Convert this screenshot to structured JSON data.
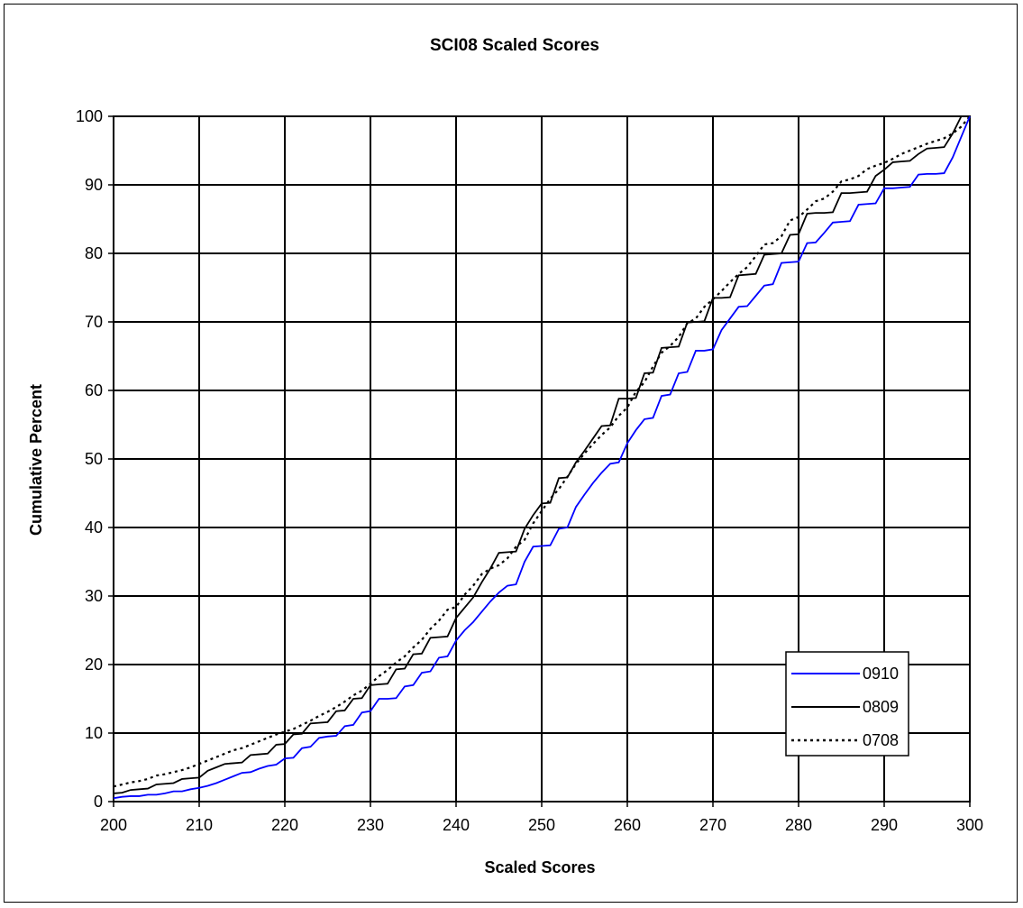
{
  "chart_data": {
    "type": "line",
    "title": "SCI08 Scaled Scores",
    "xlabel": "Scaled Scores",
    "ylabel": "Cumulative Percent",
    "xlim": [
      200,
      300
    ],
    "ylim": [
      0,
      100
    ],
    "xticks": [
      200,
      210,
      220,
      230,
      240,
      250,
      260,
      270,
      280,
      290,
      300
    ],
    "yticks": [
      0,
      10,
      20,
      30,
      40,
      50,
      60,
      70,
      80,
      90,
      100
    ],
    "grid": true,
    "legend_position": "bottom-right",
    "series": [
      {
        "name": "0910",
        "color": "#0000ff",
        "dash": "solid",
        "points": [
          [
            200,
            0.5
          ],
          [
            201,
            0.7
          ],
          [
            202,
            0.8
          ],
          [
            203,
            0.8
          ],
          [
            204,
            1.0
          ],
          [
            205,
            1.0
          ],
          [
            206,
            1.2
          ],
          [
            207,
            1.5
          ],
          [
            208,
            1.5
          ],
          [
            209,
            1.8
          ],
          [
            210,
            2.0
          ],
          [
            211,
            2.3
          ],
          [
            212,
            2.7
          ],
          [
            213,
            3.2
          ],
          [
            214,
            3.7
          ],
          [
            215,
            4.2
          ],
          [
            216,
            4.3
          ],
          [
            217,
            4.8
          ],
          [
            218,
            5.2
          ],
          [
            219,
            5.4
          ],
          [
            220,
            6.3
          ],
          [
            221,
            6.4
          ],
          [
            222,
            7.8
          ],
          [
            223,
            8.0
          ],
          [
            224,
            9.3
          ],
          [
            225,
            9.5
          ],
          [
            226,
            9.6
          ],
          [
            227,
            11.0
          ],
          [
            228,
            11.2
          ],
          [
            229,
            13.0
          ],
          [
            230,
            13.2
          ],
          [
            231,
            15.0
          ],
          [
            232,
            15.0
          ],
          [
            233,
            15.1
          ],
          [
            234,
            16.8
          ],
          [
            235,
            17.0
          ],
          [
            236,
            18.8
          ],
          [
            237,
            19.0
          ],
          [
            238,
            21.0
          ],
          [
            239,
            21.2
          ],
          [
            240,
            23.5
          ],
          [
            241,
            25.0
          ],
          [
            242,
            26.2
          ],
          [
            243,
            27.7
          ],
          [
            244,
            29.2
          ],
          [
            245,
            30.5
          ],
          [
            246,
            31.5
          ],
          [
            247,
            31.7
          ],
          [
            248,
            35.0
          ],
          [
            249,
            37.2
          ],
          [
            250,
            37.3
          ],
          [
            251,
            37.4
          ],
          [
            252,
            39.8
          ],
          [
            253,
            40.0
          ],
          [
            254,
            43.0
          ],
          [
            255,
            44.8
          ],
          [
            256,
            46.5
          ],
          [
            257,
            48.0
          ],
          [
            258,
            49.3
          ],
          [
            259,
            49.5
          ],
          [
            260,
            52.3
          ],
          [
            261,
            54.2
          ],
          [
            262,
            55.8
          ],
          [
            263,
            56.0
          ],
          [
            264,
            59.2
          ],
          [
            265,
            59.4
          ],
          [
            266,
            62.5
          ],
          [
            267,
            62.7
          ],
          [
            268,
            65.8
          ],
          [
            269,
            65.8
          ],
          [
            270,
            66.0
          ],
          [
            271,
            68.8
          ],
          [
            272,
            70.5
          ],
          [
            273,
            72.2
          ],
          [
            274,
            72.3
          ],
          [
            275,
            73.8
          ],
          [
            276,
            75.3
          ],
          [
            277,
            75.5
          ],
          [
            278,
            78.6
          ],
          [
            279,
            78.7
          ],
          [
            280,
            78.8
          ],
          [
            281,
            81.5
          ],
          [
            282,
            81.6
          ],
          [
            283,
            83.0
          ],
          [
            284,
            84.5
          ],
          [
            285,
            84.6
          ],
          [
            286,
            84.7
          ],
          [
            287,
            87.1
          ],
          [
            288,
            87.2
          ],
          [
            289,
            87.3
          ],
          [
            290,
            89.5
          ],
          [
            291,
            89.5
          ],
          [
            292,
            89.6
          ],
          [
            293,
            89.7
          ],
          [
            294,
            91.5
          ],
          [
            295,
            91.6
          ],
          [
            296,
            91.6
          ],
          [
            297,
            91.7
          ],
          [
            298,
            94.0
          ],
          [
            299,
            97.0
          ],
          [
            300,
            100.0
          ]
        ]
      },
      {
        "name": "0809",
        "color": "#000000",
        "dash": "solid",
        "points": [
          [
            200,
            1.2
          ],
          [
            201,
            1.3
          ],
          [
            202,
            1.7
          ],
          [
            203,
            1.8
          ],
          [
            204,
            1.9
          ],
          [
            205,
            2.5
          ],
          [
            206,
            2.6
          ],
          [
            207,
            2.7
          ],
          [
            208,
            3.3
          ],
          [
            209,
            3.4
          ],
          [
            210,
            3.5
          ],
          [
            211,
            4.5
          ],
          [
            212,
            5.0
          ],
          [
            213,
            5.5
          ],
          [
            214,
            5.6
          ],
          [
            215,
            5.7
          ],
          [
            216,
            6.8
          ],
          [
            217,
            6.9
          ],
          [
            218,
            7.0
          ],
          [
            219,
            8.3
          ],
          [
            220,
            8.4
          ],
          [
            221,
            9.8
          ],
          [
            222,
            9.9
          ],
          [
            223,
            11.4
          ],
          [
            224,
            11.5
          ],
          [
            225,
            11.6
          ],
          [
            226,
            13.2
          ],
          [
            227,
            13.3
          ],
          [
            228,
            15.0
          ],
          [
            229,
            15.1
          ],
          [
            230,
            17.0
          ],
          [
            231,
            17.1
          ],
          [
            232,
            17.2
          ],
          [
            233,
            19.3
          ],
          [
            234,
            19.4
          ],
          [
            235,
            21.5
          ],
          [
            236,
            21.6
          ],
          [
            237,
            23.9
          ],
          [
            238,
            24.0
          ],
          [
            239,
            24.1
          ],
          [
            240,
            26.8
          ],
          [
            241,
            28.3
          ],
          [
            242,
            29.8
          ],
          [
            243,
            32.0
          ],
          [
            244,
            34.0
          ],
          [
            245,
            36.3
          ],
          [
            246,
            36.4
          ],
          [
            247,
            36.5
          ],
          [
            248,
            39.8
          ],
          [
            249,
            41.8
          ],
          [
            250,
            43.5
          ],
          [
            251,
            43.6
          ],
          [
            252,
            47.2
          ],
          [
            253,
            47.3
          ],
          [
            254,
            49.5
          ],
          [
            255,
            51.2
          ],
          [
            256,
            53.0
          ],
          [
            257,
            54.8
          ],
          [
            258,
            54.9
          ],
          [
            259,
            58.8
          ],
          [
            260,
            58.8
          ],
          [
            261,
            58.9
          ],
          [
            262,
            62.5
          ],
          [
            263,
            62.6
          ],
          [
            264,
            66.2
          ],
          [
            265,
            66.3
          ],
          [
            266,
            66.4
          ],
          [
            267,
            69.9
          ],
          [
            268,
            70.0
          ],
          [
            269,
            70.1
          ],
          [
            270,
            73.5
          ],
          [
            271,
            73.5
          ],
          [
            272,
            73.6
          ],
          [
            273,
            76.8
          ],
          [
            274,
            76.9
          ],
          [
            275,
            77.0
          ],
          [
            276,
            79.8
          ],
          [
            277,
            79.9
          ],
          [
            278,
            80.0
          ],
          [
            279,
            82.7
          ],
          [
            280,
            82.8
          ],
          [
            281,
            85.8
          ],
          [
            282,
            85.9
          ],
          [
            283,
            85.9
          ],
          [
            284,
            86.0
          ],
          [
            285,
            88.8
          ],
          [
            286,
            88.8
          ],
          [
            287,
            88.9
          ],
          [
            288,
            89.0
          ],
          [
            289,
            91.3
          ],
          [
            290,
            92.2
          ],
          [
            291,
            93.3
          ],
          [
            292,
            93.4
          ],
          [
            293,
            93.5
          ],
          [
            294,
            94.5
          ],
          [
            295,
            95.3
          ],
          [
            296,
            95.4
          ],
          [
            297,
            95.5
          ],
          [
            298,
            97.5
          ],
          [
            299,
            100.0
          ],
          [
            300,
            100.0
          ]
        ]
      },
      {
        "name": "0708",
        "color": "#000000",
        "dash": "dotted",
        "points": [
          [
            200,
            2.2
          ],
          [
            201,
            2.5
          ],
          [
            202,
            2.8
          ],
          [
            203,
            3.0
          ],
          [
            204,
            3.3
          ],
          [
            205,
            3.8
          ],
          [
            206,
            4.0
          ],
          [
            207,
            4.3
          ],
          [
            208,
            4.6
          ],
          [
            209,
            5.0
          ],
          [
            210,
            5.5
          ],
          [
            211,
            6.0
          ],
          [
            212,
            6.5
          ],
          [
            213,
            7.0
          ],
          [
            214,
            7.5
          ],
          [
            215,
            7.8
          ],
          [
            216,
            8.3
          ],
          [
            217,
            8.8
          ],
          [
            218,
            9.3
          ],
          [
            219,
            9.8
          ],
          [
            220,
            10.2
          ],
          [
            221,
            10.6
          ],
          [
            222,
            11.2
          ],
          [
            223,
            11.8
          ],
          [
            224,
            12.5
          ],
          [
            225,
            13.1
          ],
          [
            226,
            13.8
          ],
          [
            227,
            14.6
          ],
          [
            228,
            15.5
          ],
          [
            229,
            16.2
          ],
          [
            230,
            17.2
          ],
          [
            231,
            18.3
          ],
          [
            232,
            19.2
          ],
          [
            233,
            20.3
          ],
          [
            234,
            21.2
          ],
          [
            235,
            22.5
          ],
          [
            236,
            23.6
          ],
          [
            237,
            25.2
          ],
          [
            238,
            26.4
          ],
          [
            239,
            28.0
          ],
          [
            240,
            28.4
          ],
          [
            241,
            30.2
          ],
          [
            242,
            31.5
          ],
          [
            243,
            33.2
          ],
          [
            244,
            34.0
          ],
          [
            245,
            34.5
          ],
          [
            246,
            35.5
          ],
          [
            247,
            37.2
          ],
          [
            248,
            38.2
          ],
          [
            249,
            40.6
          ],
          [
            250,
            42.4
          ],
          [
            251,
            44.2
          ],
          [
            252,
            45.6
          ],
          [
            253,
            47.4
          ],
          [
            254,
            49.3
          ],
          [
            255,
            50.8
          ],
          [
            256,
            52.2
          ],
          [
            257,
            53.5
          ],
          [
            258,
            54.6
          ],
          [
            259,
            56.3
          ],
          [
            260,
            57.5
          ],
          [
            261,
            59.8
          ],
          [
            262,
            61.2
          ],
          [
            263,
            63.5
          ],
          [
            264,
            65.5
          ],
          [
            265,
            66.5
          ],
          [
            266,
            67.8
          ],
          [
            267,
            69.8
          ],
          [
            268,
            70.5
          ],
          [
            269,
            72.2
          ],
          [
            270,
            73.3
          ],
          [
            271,
            74.5
          ],
          [
            272,
            75.8
          ],
          [
            273,
            77.0
          ],
          [
            274,
            78.0
          ],
          [
            275,
            79.6
          ],
          [
            276,
            81.3
          ],
          [
            277,
            81.5
          ],
          [
            278,
            82.5
          ],
          [
            279,
            84.8
          ],
          [
            280,
            85.3
          ],
          [
            281,
            86.4
          ],
          [
            282,
            87.6
          ],
          [
            283,
            88.0
          ],
          [
            284,
            89.0
          ],
          [
            285,
            90.5
          ],
          [
            286,
            90.8
          ],
          [
            287,
            91.3
          ],
          [
            288,
            92.3
          ],
          [
            289,
            92.8
          ],
          [
            290,
            93.2
          ],
          [
            291,
            93.8
          ],
          [
            292,
            94.5
          ],
          [
            293,
            95.0
          ],
          [
            294,
            95.5
          ],
          [
            295,
            96.0
          ],
          [
            296,
            96.4
          ],
          [
            297,
            96.8
          ],
          [
            298,
            97.5
          ],
          [
            299,
            98.5
          ],
          [
            300,
            100.0
          ]
        ]
      }
    ]
  }
}
